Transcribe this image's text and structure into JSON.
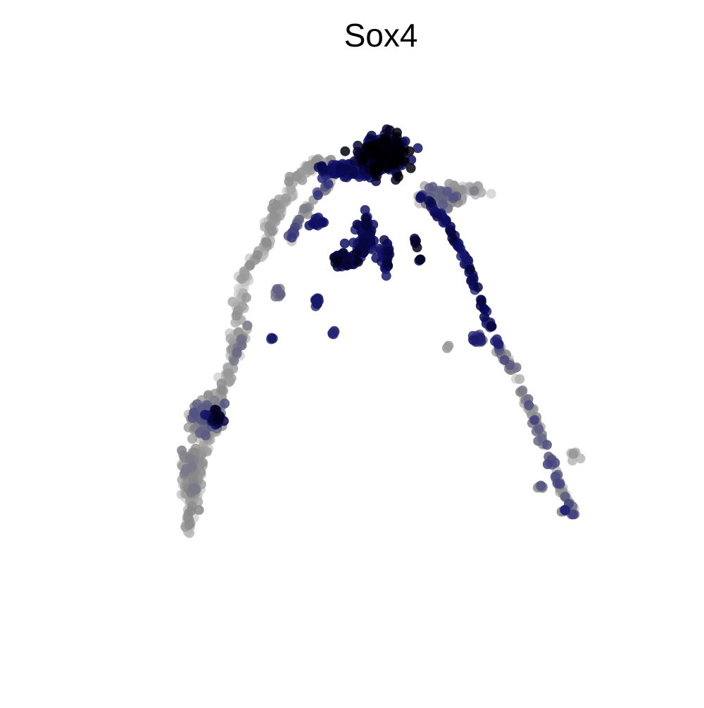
{
  "chart_data": {
    "type": "scatter",
    "title": "Sox4",
    "xlabel": "",
    "ylabel": "",
    "grid": false,
    "axes_visible": false,
    "legend": "none",
    "color_scale": {
      "low": "#d9d9d9",
      "mid": "#8c8c8c",
      "high_a": "#2c2c7a",
      "high_b": "#0b0b5c",
      "max": "#000000"
    },
    "xlim": [
      0,
      100
    ],
    "ylim": [
      0,
      100
    ],
    "expression_range": [
      0,
      1
    ],
    "clusters": [
      {
        "cx": 55.5,
        "cy": 85.0,
        "sx": 3.2,
        "sy": 2.6,
        "n": 320,
        "expr": [
          0.75,
          1.0
        ]
      },
      {
        "cx": 49.0,
        "cy": 82.5,
        "sx": 4.0,
        "sy": 1.0,
        "n": 90,
        "expr": [
          0.55,
          0.85
        ]
      },
      {
        "cx": 66.5,
        "cy": 77.5,
        "sx": 3.0,
        "sy": 1.8,
        "n": 70,
        "expr": [
          0.1,
          0.45
        ]
      },
      {
        "cx": 52.5,
        "cy": 70.0,
        "sx": 1.4,
        "sy": 3.5,
        "n": 60,
        "expr": [
          0.6,
          0.9
        ]
      },
      {
        "cx": 49.0,
        "cy": 66.5,
        "sx": 2.0,
        "sy": 1.2,
        "n": 40,
        "expr": [
          0.65,
          0.95
        ]
      },
      {
        "cx": 56.0,
        "cy": 67.0,
        "sx": 0.8,
        "sy": 2.8,
        "n": 30,
        "expr": [
          0.6,
          0.9
        ]
      },
      {
        "cx": 44.0,
        "cy": 73.0,
        "sx": 0.8,
        "sy": 1.0,
        "n": 15,
        "expr": [
          0.5,
          0.8
        ]
      },
      {
        "cx": 24.0,
        "cy": 38.0,
        "sx": 2.2,
        "sy": 2.6,
        "n": 150,
        "expr": [
          0.05,
          0.45
        ]
      },
      {
        "cx": 25.5,
        "cy": 38.2,
        "sx": 1.0,
        "sy": 1.0,
        "n": 20,
        "expr": [
          0.7,
          0.95
        ]
      },
      {
        "cx": 21.5,
        "cy": 28.0,
        "sx": 1.3,
        "sy": 4.5,
        "n": 140,
        "expr": [
          0.0,
          0.35
        ]
      },
      {
        "cx": 43.8,
        "cy": 59.3,
        "sx": 0.5,
        "sy": 0.8,
        "n": 14,
        "expr": [
          0.45,
          0.75
        ]
      },
      {
        "cx": 37.0,
        "cy": 60.5,
        "sx": 0.5,
        "sy": 0.8,
        "n": 8,
        "expr": [
          0.2,
          0.45
        ]
      },
      {
        "cx": 46.8,
        "cy": 53.5,
        "sx": 0.4,
        "sy": 0.4,
        "n": 5,
        "expr": [
          0.5,
          0.75
        ]
      },
      {
        "cx": 36.0,
        "cy": 52.6,
        "sx": 0.3,
        "sy": 0.3,
        "n": 3,
        "expr": [
          0.5,
          0.75
        ]
      },
      {
        "cx": 67.2,
        "cy": 50.8,
        "sx": 0.5,
        "sy": 0.3,
        "n": 5,
        "expr": [
          0.05,
          0.25
        ]
      },
      {
        "cx": 72.5,
        "cy": 52.5,
        "sx": 1.0,
        "sy": 0.8,
        "n": 20,
        "expr": [
          0.3,
          0.7
        ]
      },
      {
        "cx": 83.5,
        "cy": 26.0,
        "sx": 0.6,
        "sy": 0.4,
        "n": 8,
        "expr": [
          0.2,
          0.5
        ]
      },
      {
        "cx": 89.5,
        "cy": 31.5,
        "sx": 0.6,
        "sy": 0.8,
        "n": 6,
        "expr": [
          0.1,
          0.3
        ]
      },
      {
        "cx": 87.8,
        "cy": 21.8,
        "sx": 0.5,
        "sy": 0.5,
        "n": 6,
        "expr": [
          0.3,
          0.6
        ]
      },
      {
        "cx": 61.8,
        "cy": 66.5,
        "sx": 0.4,
        "sy": 0.4,
        "n": 3,
        "expr": [
          0.7,
          1.0
        ]
      }
    ],
    "strands": [
      {
        "path": [
          [
            34,
            68
          ],
          [
            31,
            64
          ],
          [
            30,
            58
          ],
          [
            29,
            52
          ],
          [
            28,
            46
          ],
          [
            26,
            41
          ]
        ],
        "width": 1.0,
        "n": 90,
        "expr": [
          0.0,
          0.3
        ]
      },
      {
        "path": [
          [
            26,
            41
          ],
          [
            24,
            34
          ],
          [
            22,
            26
          ],
          [
            20.5,
            18
          ]
        ],
        "width": 0.8,
        "n": 90,
        "expr": [
          0.0,
          0.3
        ]
      },
      {
        "path": [
          [
            34,
            68
          ],
          [
            37,
            76
          ],
          [
            40,
            81
          ],
          [
            43,
            83.5
          ],
          [
            47,
            83
          ]
        ],
        "width": 1.2,
        "n": 110,
        "expr": [
          0.0,
          0.3
        ]
      },
      {
        "path": [
          [
            39,
            70
          ],
          [
            41,
            74
          ],
          [
            44,
            78
          ],
          [
            47,
            81
          ]
        ],
        "width": 0.6,
        "n": 40,
        "expr": [
          0.0,
          0.55
        ]
      },
      {
        "path": [
          [
            28,
            46
          ],
          [
            30,
            51
          ],
          [
            31.5,
            55
          ]
        ],
        "width": 0.5,
        "n": 25,
        "expr": [
          0.0,
          0.4
        ]
      },
      {
        "path": [
          [
            62,
            78
          ],
          [
            66,
            74
          ],
          [
            70,
            67
          ],
          [
            72,
            61
          ],
          [
            74,
            56
          ],
          [
            76,
            51
          ]
        ],
        "width": 0.6,
        "n": 80,
        "expr": [
          0.45,
          0.9
        ]
      },
      {
        "path": [
          [
            76,
            51
          ],
          [
            79,
            46
          ],
          [
            81,
            41
          ],
          [
            83,
            37
          ],
          [
            85,
            31
          ],
          [
            87,
            26
          ],
          [
            89.5,
            21
          ]
        ],
        "width": 0.7,
        "n": 100,
        "expr": [
          0.0,
          0.5
        ]
      },
      {
        "path": [
          [
            62,
            77
          ],
          [
            66,
            78
          ],
          [
            70,
            79
          ],
          [
            74,
            79
          ]
        ],
        "width": 0.8,
        "n": 45,
        "expr": [
          0.0,
          0.25
        ]
      },
      {
        "path": [
          [
            60,
            74
          ],
          [
            61,
            71
          ],
          [
            62,
            67
          ]
        ],
        "width": 0.4,
        "n": 6,
        "expr": [
          0.7,
          1.0
        ]
      }
    ]
  }
}
